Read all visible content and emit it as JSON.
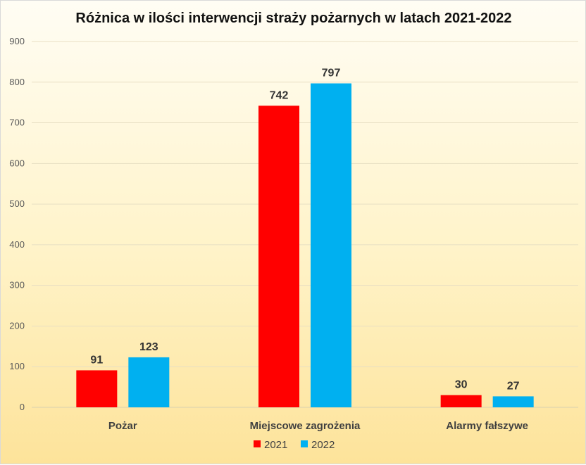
{
  "chart_data": {
    "type": "bar",
    "title": "Różnica w ilości interwencji straży pożarnych w latach 2021-2022",
    "categories": [
      "Pożar",
      "Miejscowe zagrożenia",
      "Alarmy fałszywe"
    ],
    "series": [
      {
        "name": "2021",
        "color": "#ff0000",
        "values": [
          91,
          742,
          30
        ]
      },
      {
        "name": "2022",
        "color": "#00b0f0",
        "values": [
          123,
          797,
          27
        ]
      }
    ],
    "ylim": [
      0,
      900
    ],
    "yticks": [
      0,
      100,
      200,
      300,
      400,
      500,
      600,
      700,
      800,
      900
    ],
    "grid": true,
    "legend_position": "bottom"
  }
}
